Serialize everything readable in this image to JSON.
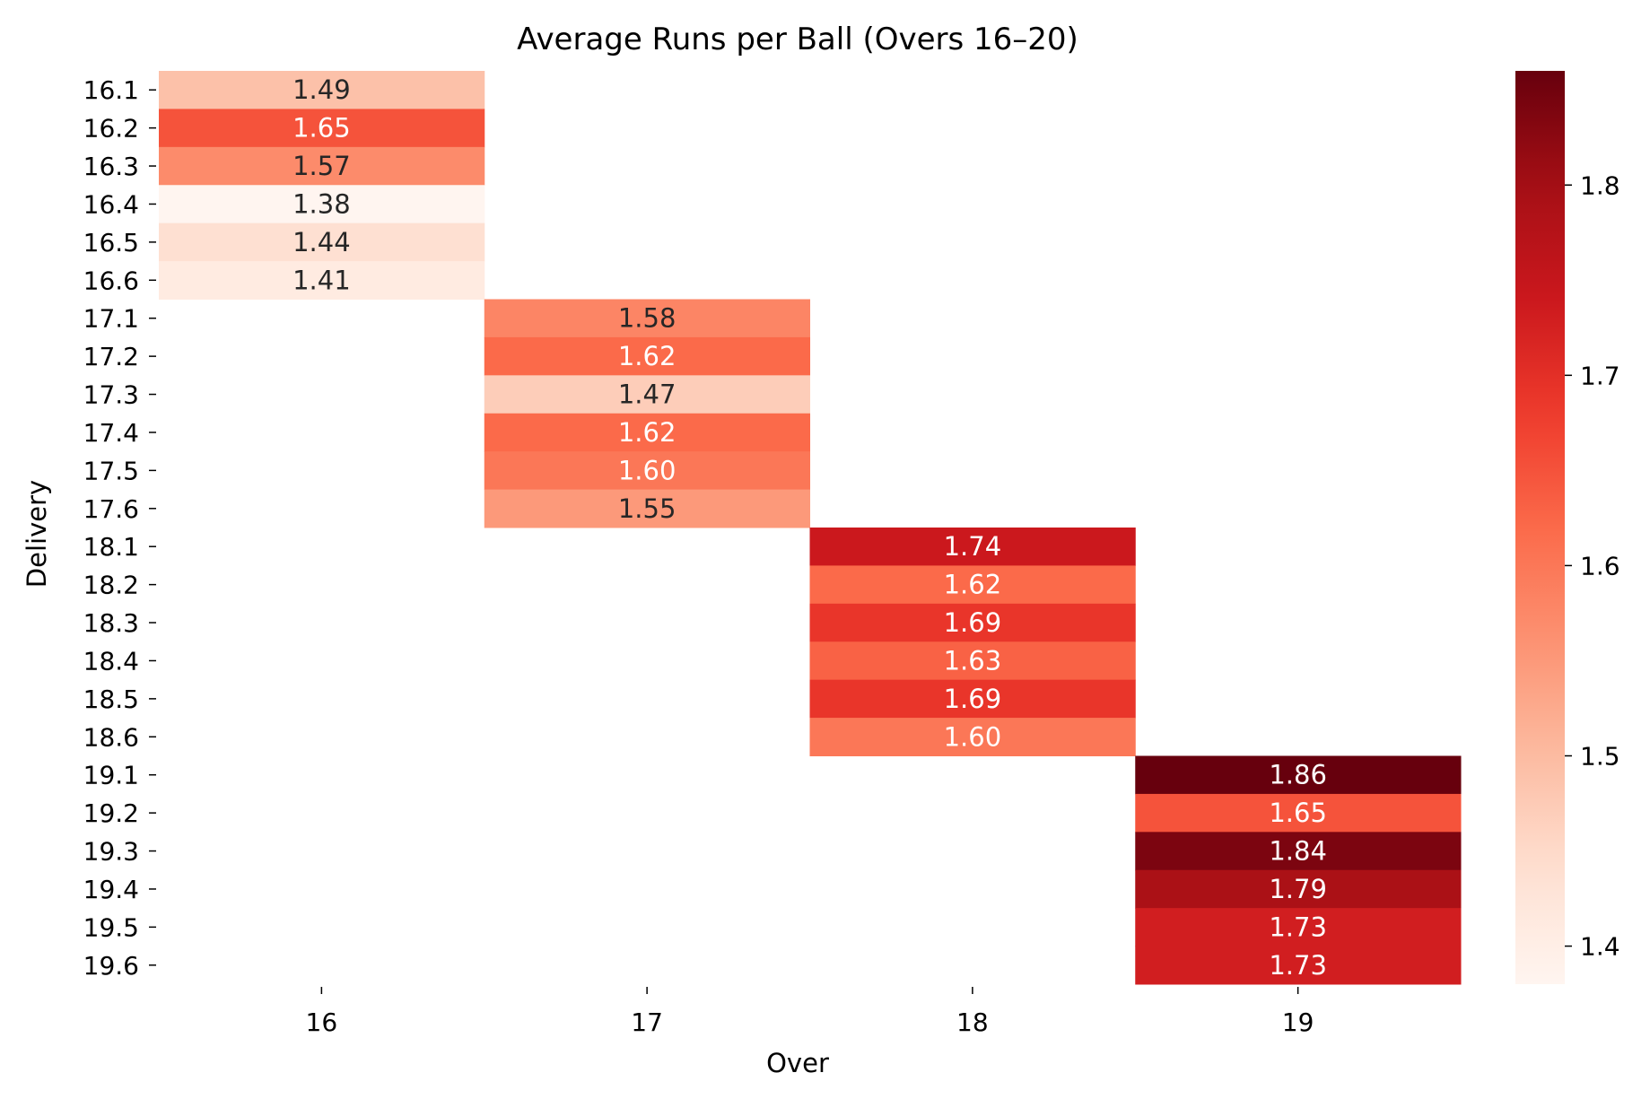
{
  "chart_data": {
    "type": "heatmap",
    "title": "Average Runs per Ball (Overs 16–20)",
    "xlabel": "Over",
    "ylabel": "Delivery",
    "x_categories": [
      "16",
      "17",
      "18",
      "19"
    ],
    "y_categories": [
      "16.1",
      "16.2",
      "16.3",
      "16.4",
      "16.5",
      "16.6",
      "17.1",
      "17.2",
      "17.3",
      "17.4",
      "17.5",
      "17.6",
      "18.1",
      "18.2",
      "18.3",
      "18.4",
      "18.5",
      "18.6",
      "19.1",
      "19.2",
      "19.3",
      "19.4",
      "19.5",
      "19.6"
    ],
    "cells": [
      {
        "over": "16",
        "delivery": "16.1",
        "value": 1.49,
        "label": "1.49"
      },
      {
        "over": "16",
        "delivery": "16.2",
        "value": 1.65,
        "label": "1.65"
      },
      {
        "over": "16",
        "delivery": "16.3",
        "value": 1.57,
        "label": "1.57"
      },
      {
        "over": "16",
        "delivery": "16.4",
        "value": 1.38,
        "label": "1.38"
      },
      {
        "over": "16",
        "delivery": "16.5",
        "value": 1.44,
        "label": "1.44"
      },
      {
        "over": "16",
        "delivery": "16.6",
        "value": 1.41,
        "label": "1.41"
      },
      {
        "over": "17",
        "delivery": "17.1",
        "value": 1.58,
        "label": "1.58"
      },
      {
        "over": "17",
        "delivery": "17.2",
        "value": 1.62,
        "label": "1.62"
      },
      {
        "over": "17",
        "delivery": "17.3",
        "value": 1.47,
        "label": "1.47"
      },
      {
        "over": "17",
        "delivery": "17.4",
        "value": 1.62,
        "label": "1.62"
      },
      {
        "over": "17",
        "delivery": "17.5",
        "value": 1.6,
        "label": "1.60"
      },
      {
        "over": "17",
        "delivery": "17.6",
        "value": 1.55,
        "label": "1.55"
      },
      {
        "over": "18",
        "delivery": "18.1",
        "value": 1.74,
        "label": "1.74"
      },
      {
        "over": "18",
        "delivery": "18.2",
        "value": 1.62,
        "label": "1.62"
      },
      {
        "over": "18",
        "delivery": "18.3",
        "value": 1.69,
        "label": "1.69"
      },
      {
        "over": "18",
        "delivery": "18.4",
        "value": 1.63,
        "label": "1.63"
      },
      {
        "over": "18",
        "delivery": "18.5",
        "value": 1.69,
        "label": "1.69"
      },
      {
        "over": "18",
        "delivery": "18.6",
        "value": 1.6,
        "label": "1.60"
      },
      {
        "over": "19",
        "delivery": "19.1",
        "value": 1.86,
        "label": "1.86"
      },
      {
        "over": "19",
        "delivery": "19.2",
        "value": 1.65,
        "label": "1.65"
      },
      {
        "over": "19",
        "delivery": "19.3",
        "value": 1.84,
        "label": "1.84"
      },
      {
        "over": "19",
        "delivery": "19.4",
        "value": 1.79,
        "label": "1.79"
      },
      {
        "over": "19",
        "delivery": "19.5",
        "value": 1.73,
        "label": "1.73"
      },
      {
        "over": "19",
        "delivery": "19.6",
        "value": 1.73,
        "label": "1.73"
      }
    ],
    "colorbar": {
      "colormap": "Reds",
      "vmin": 1.38,
      "vmax": 1.86,
      "ticks": [
        1.4,
        1.5,
        1.6,
        1.7,
        1.8
      ],
      "tick_labels": [
        "1.4",
        "1.5",
        "1.6",
        "1.7",
        "1.8"
      ]
    },
    "grid": false
  }
}
